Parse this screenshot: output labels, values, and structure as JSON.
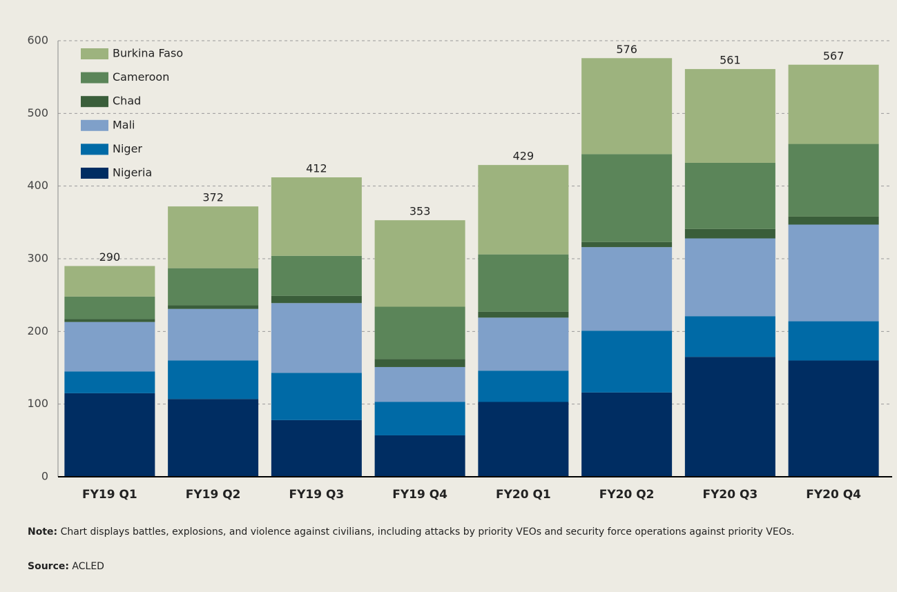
{
  "chart_data": {
    "type": "stacked_bar",
    "categories": [
      "FY19 Q1",
      "FY19 Q2",
      "FY19 Q3",
      "FY19 Q4",
      "FY20 Q1",
      "FY20 Q2",
      "FY20 Q3",
      "FY20 Q4"
    ],
    "series": [
      {
        "name": "Nigeria",
        "color": "#002d62",
        "values": [
          115,
          107,
          78,
          57,
          103,
          116,
          165,
          160
        ]
      },
      {
        "name": "Niger",
        "color": "#006aa6",
        "values": [
          30,
          53,
          65,
          46,
          43,
          85,
          56,
          54
        ]
      },
      {
        "name": "Mali",
        "color": "#7fa0c9",
        "values": [
          68,
          71,
          96,
          48,
          73,
          115,
          107,
          133
        ]
      },
      {
        "name": "Chad",
        "color": "#3a5e3a",
        "values": [
          4,
          5,
          10,
          11,
          8,
          7,
          13,
          11
        ]
      },
      {
        "name": "Cameroon",
        "color": "#5b8559",
        "values": [
          31,
          51,
          55,
          72,
          79,
          121,
          91,
          100
        ]
      },
      {
        "name": "Burkina Faso",
        "color": "#9db37e",
        "values": [
          42,
          85,
          108,
          119,
          123,
          132,
          129,
          109
        ]
      }
    ],
    "totals": [
      290,
      372,
      412,
      353,
      429,
      576,
      561,
      567
    ],
    "ylim": [
      0,
      600
    ],
    "yticks": [
      0,
      100,
      200,
      300,
      400,
      500,
      600
    ],
    "grid": true,
    "legend": "top-left",
    "note": {
      "label": "Note:",
      "text": "Chart displays battles, explosions, and violence against civilians, including attacks by priority VEOs and security force operations against priority VEOs."
    },
    "source": {
      "label": "Source:",
      "text": "ACLED"
    }
  }
}
